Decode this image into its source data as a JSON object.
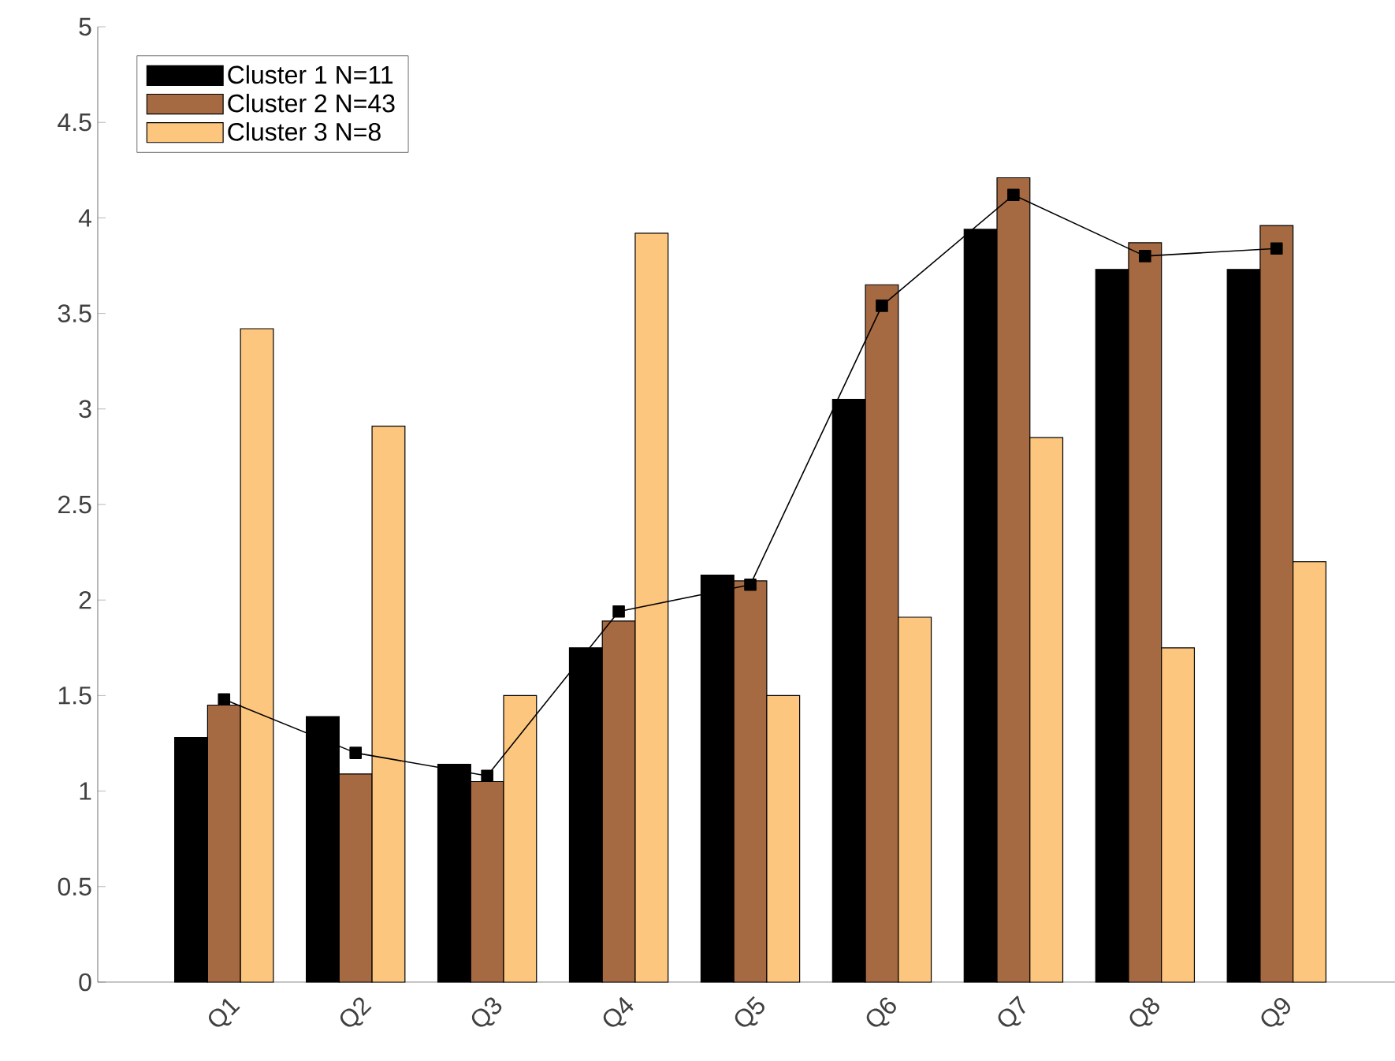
{
  "chart_data": {
    "type": "bar",
    "categories": [
      "Q1",
      "Q2",
      "Q3",
      "Q4",
      "Q5",
      "Q6",
      "Q7",
      "Q8",
      "Q9"
    ],
    "series": [
      {
        "name": "Cluster 1 N=11",
        "color": "#000000",
        "values": [
          1.28,
          1.39,
          1.14,
          1.75,
          2.13,
          3.05,
          3.94,
          3.73,
          3.73
        ]
      },
      {
        "name": "Cluster 2 N=43",
        "color": "#a66a42",
        "values": [
          1.45,
          1.09,
          1.05,
          1.89,
          2.1,
          3.65,
          4.21,
          3.87,
          3.96
        ]
      },
      {
        "name": "Cluster 3 N=8",
        "color": "#fdc67e",
        "values": [
          3.42,
          2.91,
          1.5,
          3.92,
          1.5,
          1.91,
          2.85,
          1.75,
          2.2
        ]
      },
      {
        "type": "line",
        "color": "#000000",
        "marker": "square",
        "values": [
          1.48,
          1.2,
          1.08,
          1.94,
          2.08,
          3.54,
          4.12,
          3.8,
          3.84
        ]
      }
    ],
    "ylim": [
      0,
      5
    ],
    "yticks": [
      0,
      0.5,
      1,
      1.5,
      2,
      2.5,
      3,
      3.5,
      4,
      4.5,
      5
    ],
    "legend": "top left"
  }
}
